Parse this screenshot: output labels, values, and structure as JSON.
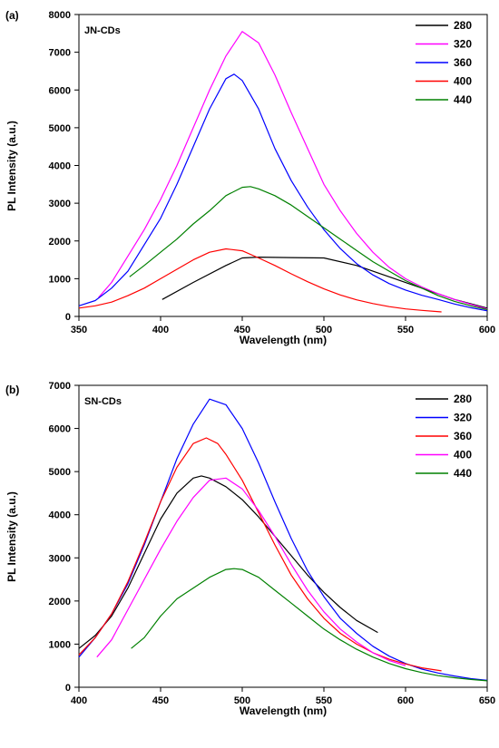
{
  "chart_data": [
    {
      "type": "line",
      "panel_label": "(a)",
      "inset_label": "JN-CDs",
      "xlabel": "Wavelength (nm)",
      "ylabel": "PL Intensity (a.u.)",
      "xlim": [
        350,
        600
      ],
      "ylim": [
        0,
        8000
      ],
      "xticks": [
        350,
        400,
        450,
        500,
        550,
        600
      ],
      "yticks": [
        0,
        1000,
        2000,
        3000,
        4000,
        5000,
        6000,
        7000,
        8000
      ],
      "grid": false,
      "legend_position": "top-right",
      "series": [
        {
          "name": "280",
          "color": "#000000",
          "x": [
            401,
            420,
            440,
            450,
            460,
            480,
            500,
            520,
            540,
            560,
            580,
            600
          ],
          "y": [
            450,
            900,
            1350,
            1550,
            1570,
            1560,
            1550,
            1350,
            1050,
            750,
            450,
            220
          ]
        },
        {
          "name": "320",
          "color": "#ff00ff",
          "x": [
            362,
            370,
            380,
            390,
            400,
            410,
            420,
            430,
            440,
            450,
            460,
            470,
            480,
            490,
            500,
            510,
            520,
            530,
            540,
            550,
            560,
            570,
            580,
            590,
            600
          ],
          "y": [
            500,
            900,
            1600,
            2300,
            3100,
            4000,
            5000,
            6000,
            6900,
            7550,
            7250,
            6400,
            5400,
            4450,
            3500,
            2800,
            2200,
            1700,
            1300,
            1000,
            780,
            600,
            450,
            320,
            200
          ]
        },
        {
          "name": "360",
          "color": "#0000ff",
          "x": [
            350,
            360,
            370,
            380,
            390,
            400,
            410,
            420,
            430,
            440,
            445,
            450,
            460,
            470,
            480,
            490,
            500,
            510,
            520,
            530,
            540,
            550,
            560,
            570,
            580,
            590,
            600
          ],
          "y": [
            280,
            420,
            750,
            1200,
            1900,
            2600,
            3500,
            4500,
            5500,
            6300,
            6420,
            6250,
            5500,
            4450,
            3600,
            2900,
            2300,
            1800,
            1400,
            1100,
            870,
            700,
            560,
            450,
            330,
            230,
            150
          ]
        },
        {
          "name": "400",
          "color": "#ff0000",
          "x": [
            350,
            360,
            370,
            380,
            390,
            400,
            410,
            420,
            430,
            440,
            450,
            460,
            470,
            480,
            490,
            500,
            510,
            520,
            530,
            540,
            550,
            560,
            572
          ],
          "y": [
            220,
            280,
            380,
            550,
            750,
            1000,
            1250,
            1500,
            1700,
            1790,
            1740,
            1550,
            1350,
            1130,
            920,
            730,
            570,
            440,
            340,
            260,
            200,
            160,
            120
          ]
        },
        {
          "name": "440",
          "color": "#008000",
          "x": [
            381,
            390,
            400,
            410,
            420,
            430,
            440,
            450,
            455,
            460,
            470,
            480,
            490,
            500,
            510,
            520,
            530,
            540,
            550,
            560,
            570,
            580,
            590,
            600
          ],
          "y": [
            1050,
            1350,
            1700,
            2050,
            2450,
            2800,
            3200,
            3420,
            3440,
            3380,
            3200,
            2950,
            2650,
            2350,
            2050,
            1750,
            1450,
            1200,
            950,
            750,
            550,
            400,
            280,
            180
          ]
        }
      ]
    },
    {
      "type": "line",
      "panel_label": "(b)",
      "inset_label": "SN-CDs",
      "xlabel": "Wavelength (nm)",
      "ylabel": "PL Intensity (a.u.)",
      "xlim": [
        400,
        650
      ],
      "ylim": [
        0,
        7000
      ],
      "xticks": [
        400,
        450,
        500,
        550,
        600,
        650
      ],
      "yticks": [
        0,
        1000,
        2000,
        3000,
        4000,
        5000,
        6000,
        7000
      ],
      "grid": false,
      "legend_position": "top-right",
      "series": [
        {
          "name": "280",
          "color": "#000000",
          "x": [
            400,
            410,
            420,
            430,
            440,
            450,
            460,
            470,
            475,
            480,
            490,
            500,
            510,
            520,
            530,
            540,
            550,
            560,
            570,
            583
          ],
          "y": [
            900,
            1200,
            1650,
            2300,
            3100,
            3900,
            4500,
            4850,
            4900,
            4850,
            4650,
            4350,
            3950,
            3500,
            3050,
            2600,
            2200,
            1850,
            1550,
            1270
          ]
        },
        {
          "name": "320",
          "color": "#0000ff",
          "x": [
            400,
            410,
            420,
            430,
            440,
            450,
            460,
            470,
            480,
            490,
            500,
            510,
            520,
            530,
            540,
            550,
            560,
            570,
            580,
            590,
            600,
            610,
            620,
            630,
            640,
            650
          ],
          "y": [
            700,
            1150,
            1700,
            2400,
            3300,
            4300,
            5300,
            6100,
            6680,
            6550,
            6000,
            5200,
            4300,
            3450,
            2700,
            2100,
            1600,
            1250,
            950,
            720,
            550,
            420,
            330,
            260,
            200,
            160
          ]
        },
        {
          "name": "360",
          "color": "#ff0000",
          "x": [
            400,
            410,
            420,
            430,
            440,
            450,
            460,
            470,
            478,
            485,
            490,
            500,
            510,
            520,
            530,
            540,
            550,
            560,
            570,
            580,
            590,
            600,
            610,
            622
          ],
          "y": [
            750,
            1150,
            1700,
            2450,
            3350,
            4300,
            5100,
            5650,
            5780,
            5650,
            5400,
            4800,
            4050,
            3300,
            2600,
            2050,
            1600,
            1250,
            1000,
            800,
            650,
            540,
            450,
            380
          ]
        },
        {
          "name": "400",
          "color": "#ff00ff",
          "x": [
            411,
            420,
            430,
            440,
            450,
            460,
            470,
            480,
            490,
            500,
            510,
            520,
            530,
            540,
            550,
            560,
            570,
            580,
            590,
            600
          ],
          "y": [
            700,
            1100,
            1800,
            2500,
            3200,
            3850,
            4400,
            4800,
            4850,
            4600,
            4100,
            3500,
            2850,
            2250,
            1750,
            1350,
            1050,
            800,
            620,
            500
          ]
        },
        {
          "name": "440",
          "color": "#008000",
          "x": [
            432,
            440,
            450,
            460,
            470,
            480,
            490,
            495,
            500,
            510,
            520,
            530,
            540,
            550,
            560,
            570,
            580,
            590,
            600,
            610,
            620,
            630,
            640,
            650
          ],
          "y": [
            900,
            1150,
            1650,
            2050,
            2300,
            2550,
            2730,
            2750,
            2730,
            2550,
            2250,
            1950,
            1650,
            1350,
            1100,
            880,
            700,
            550,
            430,
            340,
            270,
            220,
            180,
            150
          ]
        }
      ]
    }
  ]
}
